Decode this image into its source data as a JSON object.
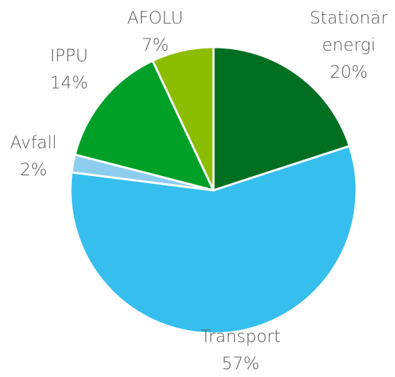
{
  "chart_data": {
    "type": "pie",
    "categories": [
      "Stationär energi",
      "Transport",
      "Avfall",
      "IPPU",
      "AFOLU"
    ],
    "values": [
      20,
      57,
      2,
      14,
      7
    ],
    "value_labels": [
      "20%",
      "57%",
      "2%",
      "14%",
      "7%"
    ],
    "colors": [
      "#006f21",
      "#36bfee",
      "#8dcdee",
      "#00a028",
      "#8cbd00"
    ]
  }
}
